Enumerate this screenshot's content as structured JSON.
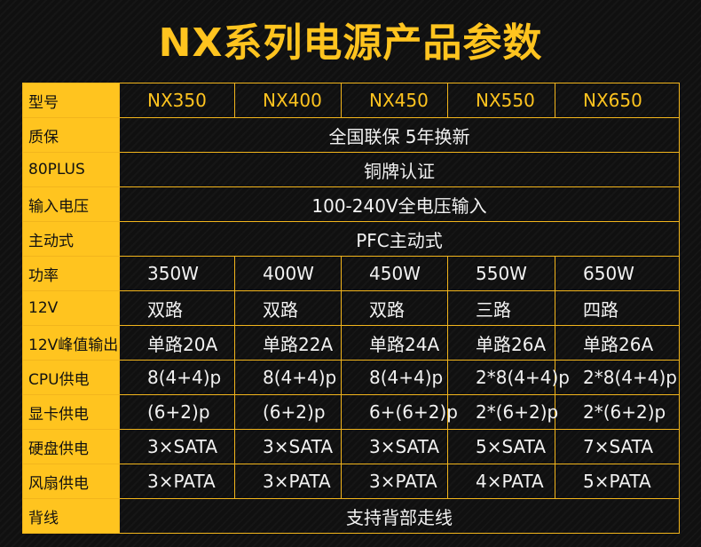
{
  "title": "NX系列电源产品参数",
  "colors": {
    "accent": "#ffc41f",
    "background": "#101010",
    "text": "#f2f2f2",
    "label_text": "#111111"
  },
  "table": {
    "header": {
      "label": "型号",
      "models": [
        "NX350",
        "NX400",
        "NX450",
        "NX550",
        "NX650"
      ]
    },
    "warranty": {
      "label": "质保",
      "value": "全国联保 5年换新"
    },
    "plus80": {
      "label": "80PLUS",
      "value": "铜牌认证"
    },
    "voltage": {
      "label": "输入电压",
      "value": "100-240V全电压输入"
    },
    "pfc": {
      "label": "主动式",
      "value": "PFC主动式"
    },
    "power": {
      "label": "功率",
      "values": [
        "350W",
        "400W",
        "450W",
        "550W",
        "650W"
      ]
    },
    "rails12v": {
      "label": "12V",
      "values": [
        "双路",
        "双路",
        "双路",
        "三路",
        "四路"
      ]
    },
    "peak12v": {
      "label": "12V峰值输出",
      "values": [
        "单路20A",
        "单路22A",
        "单路24A",
        "单路26A",
        "单路26A"
      ]
    },
    "cpu": {
      "label": "CPU供电",
      "values": [
        "8(4+4)p",
        "8(4+4)p",
        "8(4+4)p",
        "2*8(4+4)p",
        "2*8(4+4)p"
      ]
    },
    "gpu": {
      "label": "显卡供电",
      "values": [
        "(6+2)p",
        "(6+2)p",
        "6+(6+2)p",
        "2*(6+2)p",
        "2*(6+2)p"
      ]
    },
    "sata": {
      "label": "硬盘供电",
      "values": [
        "3×SATA",
        "3×SATA",
        "3×SATA",
        "5×SATA",
        "7×SATA"
      ]
    },
    "fan": {
      "label": "风扇供电",
      "values": [
        "3×PATA",
        "3×PATA",
        "3×PATA",
        "4×PATA",
        "5×PATA"
      ]
    },
    "cable": {
      "label": "背线",
      "value": "支持背部走线"
    }
  }
}
